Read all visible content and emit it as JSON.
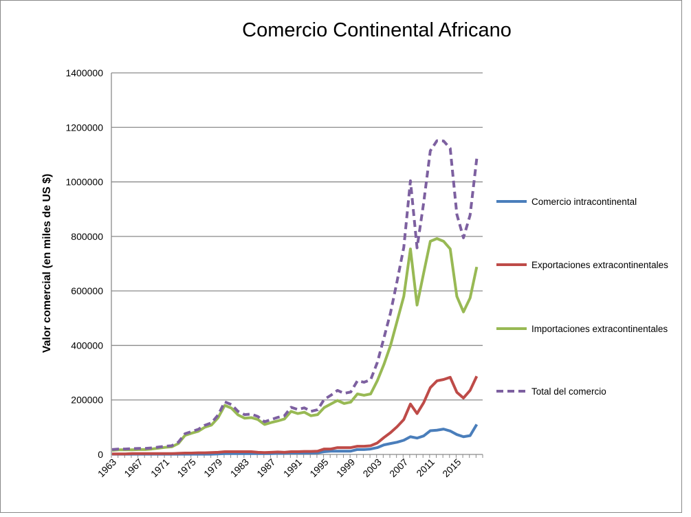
{
  "chart_data": {
    "type": "line",
    "title": "Comercio Continental Africano",
    "xlabel": "",
    "ylabel": "Valor comercial (en miles de US $)",
    "ylim": [
      0,
      1400000
    ],
    "yticks": [
      0,
      200000,
      400000,
      600000,
      800000,
      1000000,
      1200000,
      1400000
    ],
    "ytick_labels": [
      "0",
      "200000",
      "400000",
      "600000",
      "800000",
      "1000000",
      "1200000",
      "1400000"
    ],
    "xtick_labels": [
      "1963",
      "1967",
      "1971",
      "1975",
      "1979",
      "1983",
      "1987",
      "1991",
      "1995",
      "1999",
      "2003",
      "2007",
      "2011",
      "2015"
    ],
    "grid": true,
    "legend_position": "right",
    "x": [
      1963,
      1964,
      1965,
      1966,
      1967,
      1968,
      1969,
      1970,
      1971,
      1972,
      1973,
      1974,
      1975,
      1976,
      1977,
      1978,
      1979,
      1980,
      1981,
      1982,
      1983,
      1984,
      1985,
      1986,
      1987,
      1988,
      1989,
      1990,
      1991,
      1992,
      1993,
      1994,
      1995,
      1996,
      1997,
      1998,
      1999,
      2000,
      2001,
      2002,
      2003,
      2004,
      2005,
      2006,
      2007,
      2008,
      2009,
      2010,
      2011,
      2012,
      2013,
      2014,
      2015,
      2016,
      2017,
      2018
    ],
    "series": [
      {
        "name": "Comercio intracontinental",
        "color": "#4a7ebb",
        "dashed": false,
        "values": [
          1000,
          1000,
          1000,
          1000,
          1000,
          1000,
          1000,
          1000,
          1000,
          1000,
          1000,
          1000,
          1000,
          1000,
          1000,
          1000,
          2000,
          3000,
          3000,
          3000,
          3000,
          3000,
          3000,
          3000,
          3000,
          4000,
          4000,
          5000,
          5000,
          5000,
          5000,
          6000,
          10000,
          12000,
          12000,
          12000,
          12000,
          18000,
          18000,
          20000,
          25000,
          35000,
          40000,
          45000,
          52000,
          65000,
          60000,
          68000,
          87000,
          89000,
          93000,
          86000,
          73000,
          65000,
          69000,
          110000
        ]
      },
      {
        "name": "Exportaciones extracontinentales",
        "color": "#be4b48",
        "dashed": false,
        "values": [
          2000,
          2000,
          2000,
          3000,
          3000,
          3000,
          3000,
          3000,
          3000,
          3000,
          4000,
          5000,
          5000,
          6000,
          6000,
          7000,
          8000,
          10000,
          10000,
          10000,
          10000,
          10000,
          8000,
          7000,
          8000,
          9000,
          8000,
          10000,
          10000,
          11000,
          11000,
          12000,
          20000,
          20000,
          25000,
          25000,
          25000,
          30000,
          30000,
          32000,
          42000,
          62000,
          80000,
          102000,
          128000,
          185000,
          150000,
          190000,
          245000,
          270000,
          275000,
          283000,
          228000,
          207000,
          235000,
          287000
        ]
      },
      {
        "name": "Importaciones extracontinentales",
        "color": "#98b954",
        "dashed": false,
        "values": [
          15000,
          17000,
          17000,
          17000,
          18000,
          18000,
          20000,
          23000,
          26000,
          28000,
          40000,
          70000,
          78000,
          85000,
          100000,
          108000,
          135000,
          180000,
          170000,
          145000,
          133000,
          135000,
          128000,
          110000,
          117000,
          123000,
          130000,
          158000,
          150000,
          155000,
          142000,
          146000,
          172000,
          185000,
          198000,
          187000,
          192000,
          222000,
          217000,
          222000,
          270000,
          330000,
          400000,
          490000,
          580000,
          754000,
          548000,
          666000,
          782000,
          792000,
          782000,
          754000,
          580000,
          523000,
          574000,
          688000
        ]
      },
      {
        "name": "Total del comercio",
        "color": "#7d60a0",
        "dashed": true,
        "values": [
          18000,
          20000,
          20000,
          21000,
          22000,
          22000,
          24000,
          27000,
          30000,
          32000,
          45000,
          76000,
          84000,
          92000,
          107000,
          116000,
          145000,
          193000,
          183000,
          158000,
          146000,
          148000,
          139000,
          120000,
          128000,
          136000,
          142000,
          173000,
          165000,
          171000,
          158000,
          164000,
          202000,
          217000,
          235000,
          224000,
          229000,
          270000,
          265000,
          274000,
          337000,
          427000,
          520000,
          637000,
          760000,
          1004000,
          758000,
          924000,
          1114000,
          1151000,
          1150000,
          1123000,
          881000,
          795000,
          878000,
          1085000
        ]
      }
    ]
  }
}
